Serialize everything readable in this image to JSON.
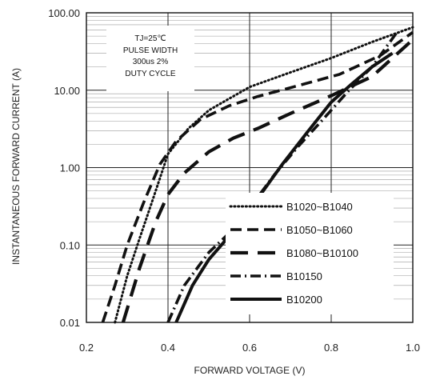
{
  "chart_data": {
    "type": "line",
    "title": "",
    "xlabel": "FORWARD VOLTAGE (V)",
    "ylabel": "INSTANTANEOUS FORWARD CURRENT (A)",
    "xlim": [
      0.2,
      1.0
    ],
    "ylim": [
      0.01,
      100
    ],
    "y_scale": "log",
    "x_ticks": [
      "0.2",
      "0.4",
      "0.6",
      "0.8",
      "1.0"
    ],
    "y_ticks": [
      "0.01",
      "0.10",
      "1.00",
      "10.00",
      "100.00"
    ],
    "grid": true,
    "legend_position": "lower-right",
    "annotation": [
      "TJ=25℃",
      "PULSE WIDTH",
      "300us 2%",
      "DUTY CYCLE"
    ],
    "series": [
      {
        "name": "B1020~B1040",
        "style": "dotted",
        "x": [
          0.27,
          0.3,
          0.33,
          0.36,
          0.4,
          0.45,
          0.5,
          0.6,
          0.7,
          0.8,
          0.9,
          1.0
        ],
        "y": [
          0.01,
          0.04,
          0.12,
          0.35,
          1.5,
          3.2,
          5.5,
          11,
          17,
          26,
          42,
          65
        ]
      },
      {
        "name": "B1050~B1060",
        "style": "dashed",
        "x": [
          0.24,
          0.27,
          0.3,
          0.34,
          0.38,
          0.42,
          0.48,
          0.55,
          0.62,
          0.72,
          0.82,
          0.92,
          1.0
        ],
        "y": [
          0.01,
          0.03,
          0.1,
          0.35,
          1.1,
          2.2,
          4.2,
          6.3,
          8.3,
          11.5,
          16,
          28,
          56
        ]
      },
      {
        "name": "B1080~B10100",
        "style": "long-dashed",
        "x": [
          0.29,
          0.33,
          0.37,
          0.4,
          0.44,
          0.5,
          0.56,
          0.62,
          0.7,
          0.8,
          0.9,
          1.0
        ],
        "y": [
          0.01,
          0.05,
          0.2,
          0.45,
          0.85,
          1.6,
          2.4,
          3.2,
          5,
          8.5,
          15,
          45
        ]
      },
      {
        "name": "B10150",
        "style": "dash-dot",
        "x": [
          0.4,
          0.44,
          0.5,
          0.56,
          0.6,
          0.66,
          0.72,
          0.78,
          0.84,
          0.9,
          0.96
        ],
        "y": [
          0.01,
          0.03,
          0.08,
          0.16,
          0.3,
          0.8,
          1.9,
          4.2,
          9.5,
          20,
          55
        ]
      },
      {
        "name": "B10200",
        "style": "solid",
        "x": [
          0.42,
          0.46,
          0.5,
          0.56,
          0.62,
          0.68,
          0.74,
          0.8,
          0.85,
          0.9,
          0.95
        ],
        "y": [
          0.01,
          0.03,
          0.065,
          0.15,
          0.4,
          1.1,
          2.8,
          7,
          12,
          20,
          30
        ]
      }
    ]
  }
}
